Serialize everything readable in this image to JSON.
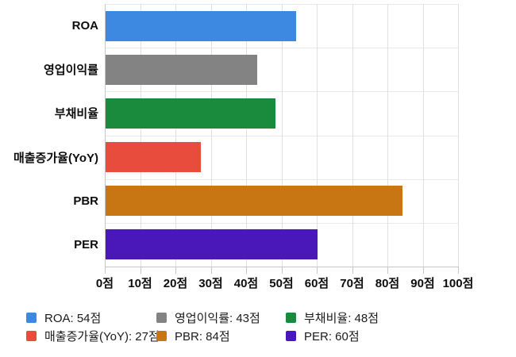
{
  "chart_data": {
    "type": "bar",
    "orientation": "horizontal",
    "title": "",
    "xlabel": "",
    "ylabel": "",
    "unit": "점",
    "categories": [
      "ROA",
      "영업이익률",
      "부채비율",
      "매출증가율(YoY)",
      "PBR",
      "PER"
    ],
    "values": [
      54,
      43,
      48,
      27,
      84,
      60
    ],
    "colors": [
      "#3d88e0",
      "#838383",
      "#1a8b3c",
      "#e74c3c",
      "#c87514",
      "#4a18b8"
    ],
    "xlim": [
      0,
      100
    ],
    "x_ticks": [
      0,
      10,
      20,
      30,
      40,
      50,
      60,
      70,
      80,
      90,
      100
    ],
    "x_tick_labels": [
      "0점",
      "10점",
      "20점",
      "30점",
      "40점",
      "50점",
      "60점",
      "70점",
      "80점",
      "90점",
      "100점"
    ],
    "grid": true,
    "legend_position": "bottom",
    "legend_items": [
      {
        "label": "ROA: 54점",
        "color": "#3d88e0"
      },
      {
        "label": "영업이익률: 43점",
        "color": "#838383"
      },
      {
        "label": "부채비율: 48점",
        "color": "#1a8b3c"
      },
      {
        "label": "매출증가율(YoY): 27점",
        "color": "#e74c3c"
      },
      {
        "label": "PBR: 84점",
        "color": "#c87514"
      },
      {
        "label": "PER: 60점",
        "color": "#4a18b8"
      }
    ]
  }
}
